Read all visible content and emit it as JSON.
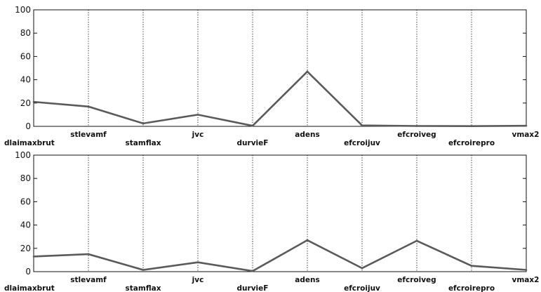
{
  "chart_data": [
    {
      "type": "line",
      "categories": [
        "dlaimaxbrut",
        "stlevamf",
        "stamflax",
        "jvc",
        "durvieF",
        "adens",
        "efcroijuv",
        "efcroiveg",
        "efcroirepro",
        "vmax2"
      ],
      "values": [
        21,
        17,
        2.5,
        10,
        0.5,
        47,
        0.8,
        0.3,
        0.2,
        0.5
      ],
      "ylim": [
        0,
        100
      ],
      "yticks": [
        0,
        20,
        40,
        60,
        80,
        100
      ],
      "grid": "vertical dotted",
      "color": "#5a5a5a"
    },
    {
      "type": "line",
      "categories": [
        "dlaimaxbrut",
        "stlevamf",
        "stamflax",
        "jvc",
        "durvieF",
        "adens",
        "efcroijuv",
        "efcroiveg",
        "efcroirepro",
        "vmax2"
      ],
      "values": [
        13,
        15,
        1.5,
        8,
        0.5,
        27,
        3,
        26.5,
        5,
        1.5
      ],
      "ylim": [
        0,
        100
      ],
      "yticks": [
        0,
        20,
        40,
        60,
        80,
        100
      ],
      "grid": "vertical dotted",
      "color": "#5a5a5a"
    }
  ]
}
